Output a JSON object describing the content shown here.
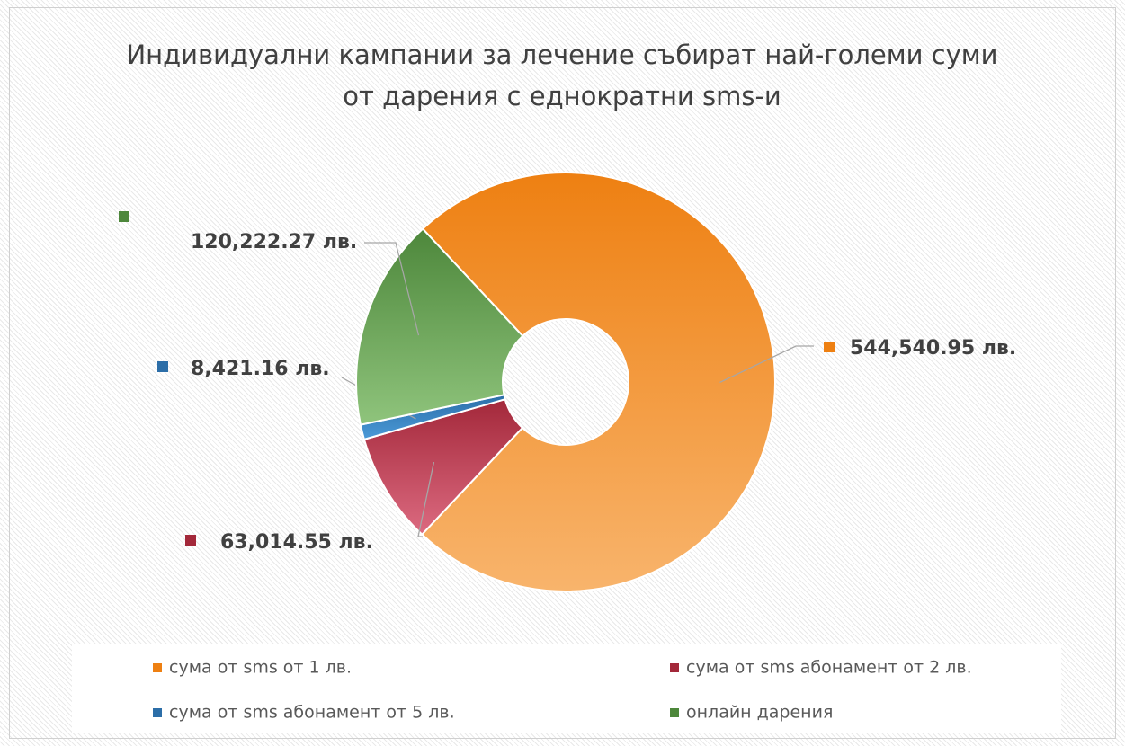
{
  "chart_data": {
    "type": "donut",
    "title": "Индивидуални кампании за лечение събират най-големи суми от дарения с еднократни sms-и",
    "categories": [
      "сума от sms от 1 лв.",
      "сума от sms абонамент от 2 лв.",
      "сума от sms абонамент от 5 лв.",
      "онлайн дарения"
    ],
    "values": [
      544540.95,
      63014.55,
      8421.16,
      120222.27
    ],
    "value_labels": [
      "544,540.95 лв.",
      "63,014.55 лв.",
      "8,421.16 лв.",
      "120,222.27 лв."
    ],
    "colors": [
      [
        "#ee8012",
        "#f8b46c"
      ],
      [
        "#a3283a",
        "#dc6a80"
      ],
      [
        "#2c6ea8",
        "#4a9ad8"
      ],
      [
        "#4d873b",
        "#8fc47c"
      ]
    ],
    "legend": "bottom"
  }
}
